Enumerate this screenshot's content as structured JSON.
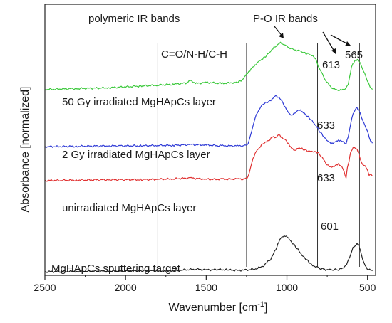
{
  "chart_data": {
    "type": "line",
    "xlabel": "Wavenumber [cm",
    "xlabel_sup": "-1",
    "xlabel_close": "]",
    "ylabel": "Absorbance [normalized]",
    "xlim": [
      2500,
      450
    ],
    "x_reversed": true,
    "x_ticks": [
      2500,
      2000,
      1500,
      1000,
      500
    ],
    "y_ticks_shown": false,
    "grid": false,
    "reference_lines": [
      1800,
      1250,
      810,
      550
    ],
    "annotations": {
      "polymeric": "polymeric IR bands",
      "po": "P-O IR bands",
      "co": "C=O/N-H/C-H",
      "p613": "613",
      "p565": "565",
      "p633a": "633",
      "p633b": "633",
      "p601": "601"
    },
    "series": [
      {
        "label": "MgHApCs sputtering target",
        "color": "#222222",
        "x": [
          2500,
          2300,
          2100,
          1900,
          1750,
          1650,
          1560,
          1500,
          1420,
          1350,
          1300,
          1250,
          1200,
          1150,
          1100,
          1070,
          1050,
          1030,
          1010,
          990,
          960,
          930,
          900,
          870,
          840,
          800,
          760,
          720,
          680,
          650,
          630,
          610,
          600,
          590,
          575,
          565,
          555,
          545,
          530,
          515,
          500,
          480,
          470
        ],
        "y": [
          0.1,
          0.11,
          0.11,
          0.12,
          0.12,
          0.14,
          0.16,
          0.14,
          0.15,
          0.14,
          0.13,
          0.14,
          0.16,
          0.22,
          0.4,
          0.6,
          0.8,
          0.9,
          0.92,
          0.86,
          0.74,
          0.6,
          0.46,
          0.35,
          0.25,
          0.18,
          0.15,
          0.14,
          0.15,
          0.18,
          0.27,
          0.42,
          0.54,
          0.64,
          0.7,
          0.74,
          0.72,
          0.6,
          0.4,
          0.25,
          0.16,
          0.13,
          0.12
        ]
      },
      {
        "label": "unirradiated MgHApCs layer",
        "color": "#e03131",
        "x": [
          2500,
          2300,
          2100,
          1900,
          1800,
          1700,
          1600,
          1500,
          1400,
          1300,
          1260,
          1240,
          1225,
          1210,
          1190,
          1170,
          1140,
          1110,
          1090,
          1070,
          1050,
          1030,
          1010,
          990,
          970,
          950,
          930,
          900,
          870,
          840,
          810,
          780,
          750,
          730,
          700,
          680,
          660,
          645,
          633,
          625,
          615,
          605,
          595,
          585,
          575,
          565,
          555,
          545,
          530,
          515,
          500,
          490,
          480,
          470
        ],
        "y": [
          2.2,
          2.21,
          2.22,
          2.22,
          2.23,
          2.24,
          2.26,
          2.23,
          2.23,
          2.24,
          2.23,
          2.3,
          2.5,
          2.72,
          2.88,
          2.97,
          3.07,
          3.12,
          3.2,
          3.18,
          3.25,
          3.18,
          3.14,
          3.05,
          2.95,
          2.9,
          2.96,
          2.92,
          2.88,
          2.86,
          2.85,
          2.72,
          2.56,
          2.5,
          2.55,
          2.58,
          2.54,
          2.4,
          2.28,
          2.5,
          2.66,
          2.84,
          2.92,
          2.96,
          2.94,
          2.9,
          2.84,
          2.68,
          2.58,
          2.54,
          2.46,
          2.32,
          2.36,
          2.3
        ]
      },
      {
        "label": "2 Gy irradiated MgHApCs layer",
        "color": "#2f3bd6",
        "x": [
          2500,
          2300,
          2100,
          1900,
          1800,
          1700,
          1600,
          1500,
          1400,
          1300,
          1260,
          1240,
          1225,
          1210,
          1190,
          1170,
          1150,
          1120,
          1100,
          1085,
          1070,
          1050,
          1030,
          1010,
          990,
          970,
          950,
          930,
          910,
          880,
          850,
          820,
          790,
          760,
          740,
          720,
          700,
          680,
          660,
          645,
          633,
          620,
          605,
          590,
          575,
          565,
          555,
          545,
          530,
          515,
          500,
          490,
          480,
          470
        ],
        "y": [
          2.98,
          2.99,
          3.0,
          3.0,
          3.01,
          3.01,
          3.03,
          3.02,
          3.0,
          3.0,
          3.0,
          3.06,
          3.24,
          3.48,
          3.72,
          3.86,
          3.95,
          4.01,
          4.03,
          4.1,
          4.14,
          4.12,
          4.02,
          3.9,
          3.76,
          3.72,
          3.76,
          3.84,
          3.8,
          3.7,
          3.6,
          3.46,
          3.3,
          3.16,
          3.08,
          3.06,
          3.1,
          3.14,
          3.12,
          3.08,
          3.06,
          3.2,
          3.5,
          3.72,
          3.84,
          3.86,
          3.82,
          3.74,
          3.6,
          3.46,
          3.36,
          3.2,
          3.12,
          3.06
        ]
      },
      {
        "label": "50 Gy irradiated MgHApCs layer",
        "color": "#3cc93c",
        "x": [
          2500,
          2300,
          2100,
          1900,
          1800,
          1700,
          1620,
          1600,
          1560,
          1500,
          1400,
          1320,
          1290,
          1270,
          1250,
          1230,
          1210,
          1190,
          1170,
          1150,
          1120,
          1100,
          1080,
          1060,
          1040,
          1020,
          1000,
          980,
          960,
          940,
          920,
          900,
          870,
          840,
          820,
          800,
          780,
          760,
          740,
          720,
          700,
          680,
          660,
          640,
          620,
          610,
          600,
          590,
          580,
          570,
          565,
          560,
          550,
          540,
          525,
          510,
          500,
          490,
          480,
          470
        ],
        "y": [
          4.3,
          4.32,
          4.34,
          4.38,
          4.4,
          4.42,
          4.45,
          4.5,
          4.44,
          4.46,
          4.44,
          4.46,
          4.49,
          4.56,
          4.66,
          4.74,
          4.82,
          4.88,
          4.95,
          5.0,
          5.1,
          5.18,
          5.26,
          5.33,
          5.38,
          5.35,
          5.3,
          5.26,
          5.22,
          5.2,
          5.18,
          5.15,
          5.12,
          5.08,
          4.98,
          4.8,
          4.66,
          4.52,
          4.42,
          4.34,
          4.3,
          4.28,
          4.28,
          4.3,
          4.4,
          4.6,
          4.8,
          4.9,
          4.96,
          4.98,
          5.0,
          4.98,
          4.94,
          4.86,
          4.72,
          4.58,
          4.48,
          4.4,
          4.34,
          4.3
        ]
      }
    ]
  }
}
